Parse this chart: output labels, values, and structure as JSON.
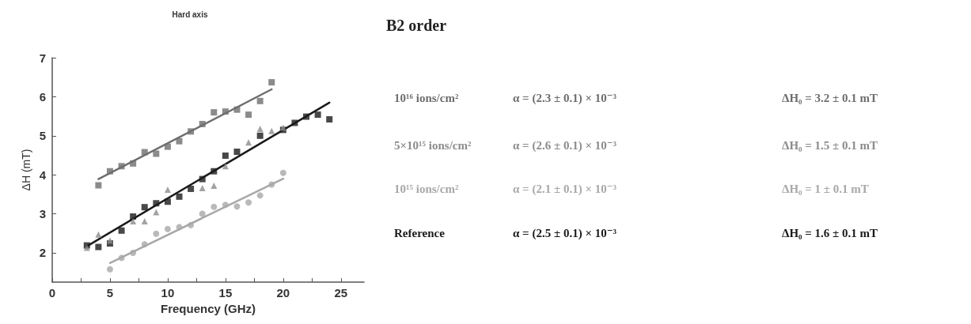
{
  "chart_data": {
    "type": "scatter",
    "title": "Hard axis",
    "xlabel": "Frequency (GHz)",
    "ylabel": "ΔH (mT)",
    "xlim": [
      0,
      27
    ],
    "xticks": [
      0,
      {
        "value": 2.5,
        "label": null
      },
      5,
      {
        "value": 7.5,
        "label": null
      },
      10,
      {
        "value": 12.5,
        "label": null
      },
      15,
      {
        "value": 17.5,
        "label": null
      },
      20,
      {
        "value": 22.5,
        "label": null
      },
      25
    ],
    "ylim": [
      1.25,
      7
    ],
    "yticks": [
      2,
      3,
      4,
      5,
      6,
      7
    ],
    "grid": false,
    "series": [
      {
        "name": "10¹⁶ ions/cm²",
        "color": "#6e6e6e",
        "marker": "square",
        "x": [
          4,
          5,
          6,
          7,
          8,
          9,
          10,
          11,
          12,
          13,
          14,
          15,
          16,
          17,
          18,
          19
        ],
        "values": [
          3.73,
          4.09,
          4.22,
          4.29,
          4.58,
          4.54,
          4.72,
          4.86,
          5.11,
          5.3,
          5.6,
          5.62,
          5.67,
          5.54,
          5.89,
          6.37
        ]
      },
      {
        "name": "5×10¹⁵ ions/cm²",
        "color": "#8c8c8c",
        "marker": "triangle",
        "x": [
          3,
          4,
          5,
          7,
          8,
          9,
          10,
          13,
          14,
          15,
          17,
          18,
          19,
          20
        ],
        "values": [
          2.13,
          2.47,
          2.32,
          2.81,
          2.81,
          3.04,
          3.62,
          3.66,
          3.72,
          4.22,
          4.83,
          5.18,
          5.12,
          5.21
        ]
      },
      {
        "name": "10¹⁵ ions/cm²",
        "color": "#a8a8a8",
        "marker": "circle",
        "x": [
          5,
          6,
          7,
          8,
          9,
          10,
          11,
          12,
          13,
          14,
          15,
          16,
          17,
          18,
          19,
          20
        ],
        "values": [
          1.58,
          1.87,
          2.0,
          2.22,
          2.49,
          2.61,
          2.66,
          2.71,
          3.0,
          3.18,
          3.23,
          3.19,
          3.29,
          3.47,
          3.75,
          4.05
        ]
      },
      {
        "name": "Reference",
        "color": "#1a1a1a",
        "marker": "square",
        "x": [
          3,
          4,
          5,
          6,
          7,
          8,
          9,
          10,
          11,
          12,
          13,
          14,
          15,
          16,
          18,
          20,
          21,
          22,
          23,
          24
        ],
        "values": [
          2.19,
          2.15,
          2.24,
          2.57,
          2.93,
          3.17,
          3.27,
          3.31,
          3.44,
          3.64,
          3.89,
          4.09,
          4.49,
          4.59,
          5.0,
          5.15,
          5.33,
          5.49,
          5.54,
          5.42
        ]
      },
      {
        "type": "line",
        "color": "#6e6e6e",
        "marker": "none",
        "line_style": "solid",
        "x": [
          4,
          19
        ],
        "values": [
          3.89,
          6.19
        ]
      },
      {
        "type": "line",
        "color": "#1a1a1a",
        "marker": "none",
        "line_style": "solid",
        "x": [
          3,
          24
        ],
        "values": [
          2.17,
          5.85
        ]
      },
      {
        "type": "line",
        "color": "#a8a8a8",
        "marker": "none",
        "line_style": "solid",
        "x": [
          5,
          20
        ],
        "values": [
          1.74,
          3.9
        ]
      }
    ],
    "annotations": [
      "B2 order",
      "α = (2.3 ± 0.1) × 10⁻³",
      "ΔH₀ = 3.2 ± 0.1 mT",
      "α = (2.6 ± 0.1) × 10⁻³",
      "ΔH₀ = 1.5 ± 0.1 mT",
      "α = (2.1 ± 0.1) × 10⁻³",
      "ΔH₀ = 1 ± 0.1 mT",
      "α = (2.5 ± 0.1) × 10⁻³",
      "ΔH₀ = 1.6 ± 0.1 mT"
    ]
  }
}
